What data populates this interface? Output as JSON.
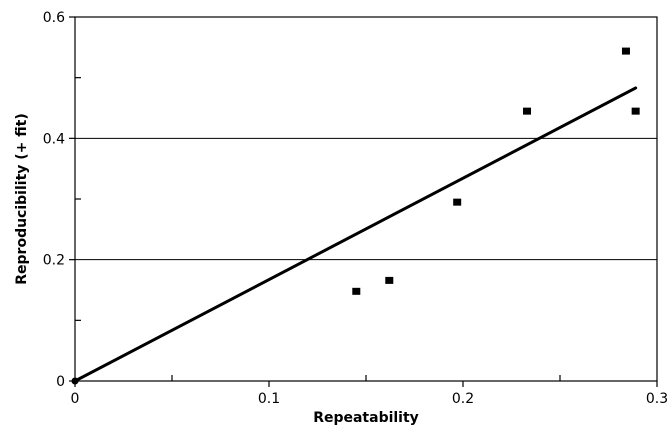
{
  "chart_data": {
    "type": "scatter",
    "title": "",
    "xlabel": "Repeatability",
    "ylabel": "Reproducibility (+ fit)",
    "xlim": [
      0,
      0.3
    ],
    "ylim": [
      0,
      0.6
    ],
    "x_ticks": [
      0,
      0.1,
      0.2,
      0.3
    ],
    "x_tick_labels": [
      "0",
      "0.1",
      "0.2",
      "0.3"
    ],
    "x_minor_ticks": [
      0.05,
      0.15,
      0.25
    ],
    "y_ticks": [
      0,
      0.2,
      0.4,
      0.6
    ],
    "y_tick_labels": [
      "0",
      "0.2",
      "0.4",
      "0.6"
    ],
    "y_minor_ticks": [
      0.1,
      0.3,
      0.5
    ],
    "y_gridlines": [
      0.2,
      0.4
    ],
    "grid": "horizontal at major y ticks",
    "legend": "none",
    "series": [
      {
        "kind": "points",
        "marker": "square",
        "color": "#000000",
        "points": [
          {
            "x": 0.145,
            "y": 0.147
          },
          {
            "x": 0.162,
            "y": 0.165
          },
          {
            "x": 0.197,
            "y": 0.294
          },
          {
            "x": 0.233,
            "y": 0.444
          },
          {
            "x": 0.284,
            "y": 0.543
          },
          {
            "x": 0.289,
            "y": 0.444
          }
        ]
      },
      {
        "kind": "fit-line",
        "color": "#000000",
        "points": [
          {
            "x": 0,
            "y": 0
          },
          {
            "x": 0.289,
            "y": 0.483
          }
        ]
      }
    ]
  }
}
